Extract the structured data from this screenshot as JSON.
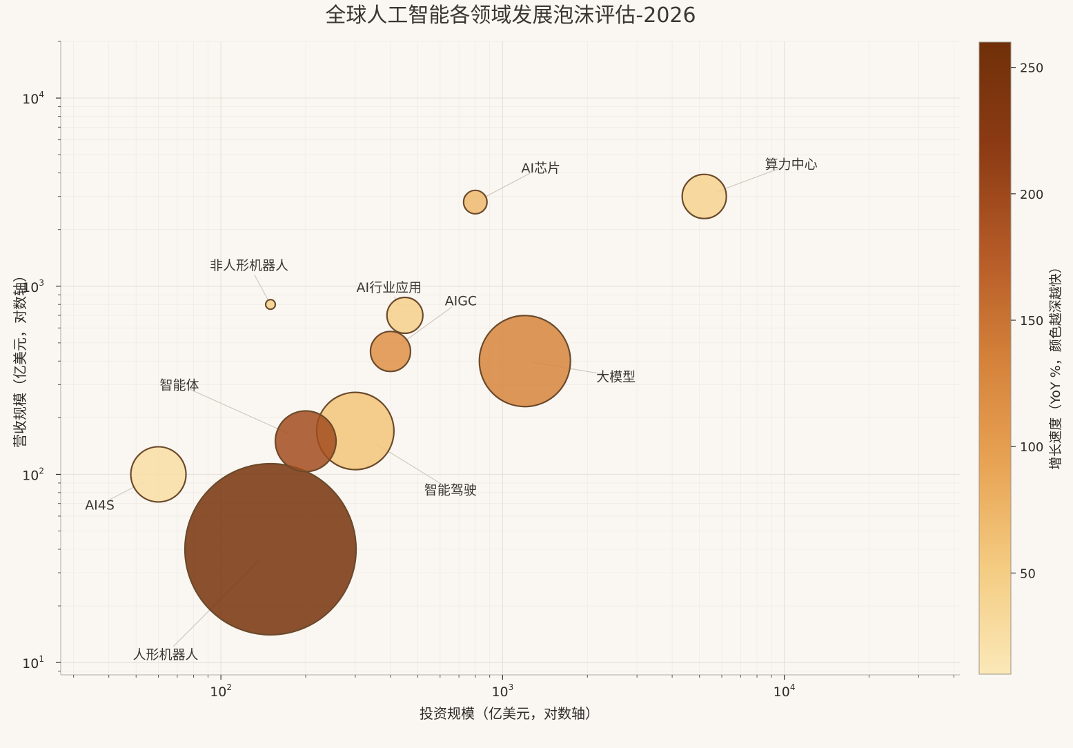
{
  "chart_data": {
    "type": "scatter",
    "title": "全球人工智能各领域发展泡沫评估-2026",
    "xlabel": "投资规模（亿美元，对数轴）",
    "ylabel": "营收规模（亿美元，对数轴）",
    "x_scale": "log",
    "y_scale": "log",
    "xlim": [
      27,
      42000
    ],
    "ylim": [
      8.6,
      20000
    ],
    "x_ticks": [
      {
        "value": 100,
        "base": "10",
        "exp": "2"
      },
      {
        "value": 1000,
        "base": "10",
        "exp": "3"
      },
      {
        "value": 10000,
        "base": "10",
        "exp": "4"
      }
    ],
    "y_ticks": [
      {
        "value": 10,
        "base": "10",
        "exp": "1"
      },
      {
        "value": 100,
        "base": "10",
        "exp": "2"
      },
      {
        "value": 1000,
        "base": "10",
        "exp": "3"
      },
      {
        "value": 10000,
        "base": "10",
        "exp": "4"
      }
    ],
    "grid": true,
    "colorbar": {
      "label": "增长速度（YoY %，颜色越深越快）",
      "range": [
        10,
        260
      ],
      "ticks": [
        "50",
        "100",
        "150",
        "200",
        "250"
      ],
      "colors": [
        "#fbe8b8",
        "#f4cc82",
        "#e8a354",
        "#d4813a",
        "#b45a27",
        "#8c3b14",
        "#703009"
      ]
    },
    "points": [
      {
        "label": "算力中心",
        "x": 5200,
        "y": 3000,
        "size": 32,
        "growth": 40
      },
      {
        "label": "AI芯片",
        "x": 800,
        "y": 2800,
        "size": 17,
        "growth": 70
      },
      {
        "label": "非人形机器人",
        "x": 150,
        "y": 800,
        "size": 7,
        "growth": 45
      },
      {
        "label": "AI行业应用",
        "x": 450,
        "y": 700,
        "size": 26,
        "growth": 45
      },
      {
        "label": "AIGC",
        "x": 400,
        "y": 450,
        "size": 29,
        "growth": 115
      },
      {
        "label": "大模型",
        "x": 1200,
        "y": 400,
        "size": 66,
        "growth": 130
      },
      {
        "label": "智能体",
        "x": 200,
        "y": 150,
        "size": 44,
        "growth": 195
      },
      {
        "label": "智能驾驶",
        "x": 300,
        "y": 170,
        "size": 56,
        "growth": 60
      },
      {
        "label": "AI4S",
        "x": 60,
        "y": 100,
        "size": 40,
        "growth": 25
      },
      {
        "label": "人形机器人",
        "x": 150,
        "y": 40,
        "size": 124,
        "growth": 250
      }
    ]
  }
}
